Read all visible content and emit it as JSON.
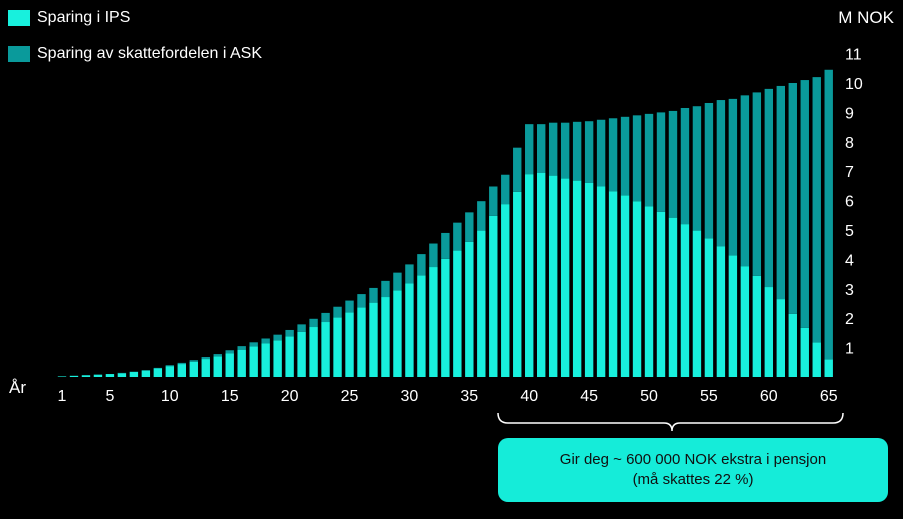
{
  "legend": {
    "ips_label": "Sparing i IPS",
    "ask_label": "Sparing av skattefordelen i ASK"
  },
  "axes": {
    "y_unit": "M NOK",
    "x_label": "År"
  },
  "callout": {
    "line1": "Gir deg ~ 600 000 NOK ekstra i pensjon",
    "line2": "(må skattes 22 %)"
  },
  "colors": {
    "ips": "#18f0dd",
    "ask": "#0a9a9b",
    "background": "#000000",
    "callout_bg": "#15ecd9"
  },
  "chart_data": {
    "type": "bar",
    "stacked": true,
    "ylim": [
      0,
      11
    ],
    "y_ticks": [
      1,
      2,
      3,
      4,
      5,
      6,
      7,
      8,
      9,
      10,
      11
    ],
    "y_axis_position": "right",
    "x_ticks": [
      1,
      5,
      10,
      15,
      20,
      25,
      30,
      35,
      40,
      45,
      50,
      55,
      60,
      65
    ],
    "x": [
      1,
      2,
      3,
      4,
      5,
      6,
      7,
      8,
      9,
      10,
      11,
      12,
      13,
      14,
      15,
      16,
      17,
      18,
      19,
      20,
      21,
      22,
      23,
      24,
      25,
      26,
      27,
      28,
      29,
      30,
      31,
      32,
      33,
      34,
      35,
      36,
      37,
      38,
      39,
      40,
      41,
      42,
      43,
      44,
      45,
      46,
      47,
      48,
      49,
      50,
      51,
      52,
      53,
      54,
      55,
      56,
      57,
      58,
      59,
      60,
      61,
      62,
      63,
      64,
      65
    ],
    "series": [
      {
        "name": "Sparing i IPS",
        "values": [
          0.02,
          0.04,
          0.06,
          0.08,
          0.1,
          0.13,
          0.17,
          0.22,
          0.29,
          0.37,
          0.44,
          0.52,
          0.61,
          0.7,
          0.81,
          0.93,
          1.04,
          1.14,
          1.25,
          1.38,
          1.54,
          1.7,
          1.87,
          2.03,
          2.2,
          2.37,
          2.53,
          2.72,
          2.95,
          3.18,
          3.46,
          3.74,
          4.02,
          4.3,
          4.6,
          4.98,
          5.48,
          5.88,
          6.3,
          6.9,
          6.95,
          6.85,
          6.75,
          6.68,
          6.6,
          6.48,
          6.32,
          6.18,
          5.98,
          5.8,
          5.62,
          5.42,
          5.2,
          4.98,
          4.72,
          4.45,
          4.14,
          3.77,
          3.44,
          3.06,
          2.65,
          2.15,
          1.67,
          1.18,
          0.6
        ]
      },
      {
        "name": "Sparing av skattefordelen i ASK",
        "values": [
          0,
          0,
          0,
          0,
          0,
          0.01,
          0.01,
          0.01,
          0.02,
          0.03,
          0.04,
          0.05,
          0.07,
          0.08,
          0.1,
          0.12,
          0.14,
          0.17,
          0.19,
          0.22,
          0.25,
          0.28,
          0.31,
          0.36,
          0.4,
          0.45,
          0.5,
          0.55,
          0.6,
          0.65,
          0.72,
          0.8,
          0.88,
          0.95,
          1.0,
          1.0,
          1.0,
          1.0,
          1.5,
          1.7,
          1.65,
          1.8,
          1.9,
          2.0,
          2.1,
          2.27,
          2.48,
          2.67,
          2.92,
          3.15,
          3.38,
          3.63,
          3.95,
          4.23,
          4.6,
          4.97,
          5.32,
          5.81,
          6.24,
          6.74,
          7.25,
          7.85,
          8.43,
          9.02,
          9.85
        ]
      }
    ]
  }
}
